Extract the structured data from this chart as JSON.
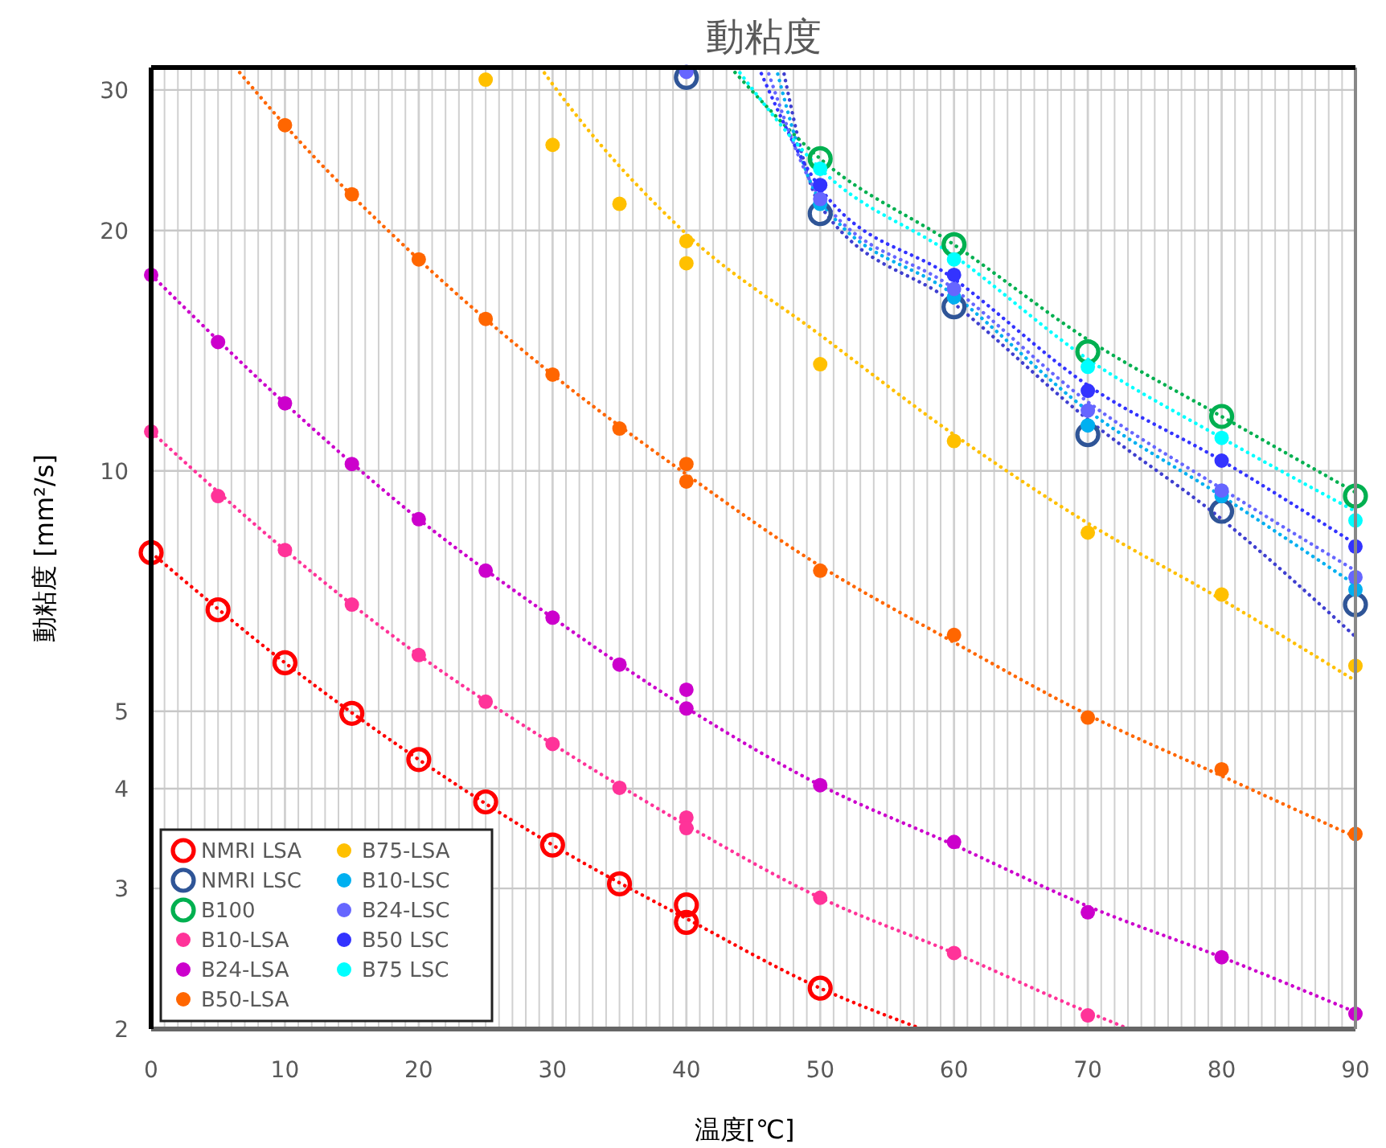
{
  "chart_data": {
    "type": "scatter",
    "title": "動粘度",
    "xlabel": "温度[℃]",
    "ylabel": "動粘度 [mm²/s]",
    "xlim": [
      0,
      90
    ],
    "ylim": [
      2,
      32
    ],
    "xticks": [
      0,
      {
        "value": 1,
        "label": null
      },
      {
        "value": 2,
        "label": null
      },
      {
        "value": 3,
        "label": null
      },
      {
        "value": 4,
        "label": null
      },
      {
        "value": 5,
        "label": null
      },
      {
        "value": 6,
        "label": null
      },
      {
        "value": 7,
        "label": null
      },
      {
        "value": 8,
        "label": null
      },
      {
        "value": 9,
        "label": null
      },
      10,
      {
        "value": 11,
        "label": null
      },
      {
        "value": 12,
        "label": null
      },
      {
        "value": 13,
        "label": null
      },
      {
        "value": 14,
        "label": null
      },
      {
        "value": 15,
        "label": null
      },
      {
        "value": 16,
        "label": null
      },
      {
        "value": 17,
        "label": null
      },
      {
        "value": 18,
        "label": null
      },
      {
        "value": 19,
        "label": null
      },
      20,
      {
        "value": 21,
        "label": null
      },
      {
        "value": 22,
        "label": null
      },
      {
        "value": 23,
        "label": null
      },
      {
        "value": 24,
        "label": null
      },
      {
        "value": 25,
        "label": null
      },
      {
        "value": 26,
        "label": null
      },
      {
        "value": 27,
        "label": null
      },
      {
        "value": 28,
        "label": null
      },
      {
        "value": 29,
        "label": null
      },
      30,
      {
        "value": 31,
        "label": null
      },
      {
        "value": 32,
        "label": null
      },
      {
        "value": 33,
        "label": null
      },
      {
        "value": 34,
        "label": null
      },
      {
        "value": 35,
        "label": null
      },
      {
        "value": 36,
        "label": null
      },
      {
        "value": 37,
        "label": null
      },
      {
        "value": 38,
        "label": null
      },
      {
        "value": 39,
        "label": null
      },
      40,
      {
        "value": 41,
        "label": null
      },
      {
        "value": 42,
        "label": null
      },
      {
        "value": 43,
        "label": null
      },
      {
        "value": 44,
        "label": null
      },
      {
        "value": 45,
        "label": null
      },
      {
        "value": 46,
        "label": null
      },
      {
        "value": 47,
        "label": null
      },
      {
        "value": 48,
        "label": null
      },
      {
        "value": 49,
        "label": null
      },
      50,
      {
        "value": 51,
        "label": null
      },
      {
        "value": 52,
        "label": null
      },
      {
        "value": 53,
        "label": null
      },
      {
        "value": 54,
        "label": null
      },
      {
        "value": 55,
        "label": null
      },
      {
        "value": 56,
        "label": null
      },
      {
        "value": 57,
        "label": null
      },
      {
        "value": 58,
        "label": null
      },
      {
        "value": 59,
        "label": null
      },
      60,
      {
        "value": 61,
        "label": null
      },
      {
        "value": 62,
        "label": null
      },
      {
        "value": 63,
        "label": null
      },
      {
        "value": 64,
        "label": null
      },
      {
        "value": 65,
        "label": null
      },
      {
        "value": 66,
        "label": null
      },
      {
        "value": 67,
        "label": null
      },
      {
        "value": 68,
        "label": null
      },
      {
        "value": 69,
        "label": null
      },
      70,
      {
        "value": 71,
        "label": null
      },
      {
        "value": 72,
        "label": null
      },
      {
        "value": 73,
        "label": null
      },
      {
        "value": 74,
        "label": null
      },
      {
        "value": 75,
        "label": null
      },
      {
        "value": 76,
        "label": null
      },
      {
        "value": 77,
        "label": null
      },
      {
        "value": 78,
        "label": null
      },
      {
        "value": 79,
        "label": null
      },
      80,
      {
        "value": 81,
        "label": null
      },
      {
        "value": 82,
        "label": null
      },
      {
        "value": 83,
        "label": null
      },
      {
        "value": 84,
        "label": null
      },
      {
        "value": 85,
        "label": null
      },
      {
        "value": 86,
        "label": null
      },
      {
        "value": 87,
        "label": null
      },
      {
        "value": 88,
        "label": null
      },
      {
        "value": 89,
        "label": null
      },
      90
    ],
    "yticks": [
      2,
      3,
      4,
      5,
      10,
      20,
      30
    ],
    "grid": true,
    "legend": "bottom left",
    "log": "y",
    "series": [
      {
        "name": "NMRI LSA",
        "color": "#ff0000",
        "marker": "circle-open",
        "x": [
          0,
          5,
          10,
          15,
          20,
          25,
          30,
          35,
          40,
          40,
          50
        ],
        "values": [
          7.9,
          6.7,
          5.75,
          4.97,
          4.35,
          3.85,
          3.4,
          3.04,
          2.86,
          2.72,
          2.25
        ]
      },
      {
        "name": "NMRI LSC",
        "color": "#2f5597",
        "marker": "circle-open",
        "x": [
          40,
          50,
          60,
          70,
          80,
          90
        ],
        "values": [
          31.1,
          21.0,
          16.05,
          11.1,
          8.9,
          6.8
        ]
      },
      {
        "name": "B100",
        "color": "#00b050",
        "marker": "circle-open",
        "x": [
          50,
          60,
          70,
          80,
          90
        ],
        "values": [
          24.6,
          19.2,
          14.1,
          11.7,
          9.3
        ]
      },
      {
        "name": "B10-LSA",
        "color": "#ff3399",
        "marker": "circle",
        "x": [
          0,
          5,
          10,
          15,
          20,
          25,
          30,
          35,
          40,
          40,
          50,
          60,
          70
        ],
        "values": [
          11.2,
          9.3,
          7.96,
          6.8,
          5.88,
          5.14,
          4.55,
          4.01,
          3.68,
          3.57,
          2.92,
          2.49,
          2.08
        ]
      },
      {
        "name": "B24-LSA",
        "color": "#cc00cc",
        "marker": "circle",
        "x": [
          0,
          5,
          10,
          15,
          20,
          25,
          30,
          35,
          40,
          40,
          50,
          60,
          70,
          80,
          90
        ],
        "values": [
          17.6,
          14.5,
          12.15,
          10.2,
          8.7,
          7.5,
          6.55,
          5.72,
          5.32,
          5.04,
          4.04,
          3.43,
          2.8,
          2.46,
          2.09
        ]
      },
      {
        "name": "B50-LSA",
        "color": "#ff6600",
        "marker": "circle",
        "x": [
          10,
          15,
          20,
          25,
          30,
          35,
          40,
          40,
          50,
          60,
          70,
          80,
          90
        ],
        "values": [
          27.1,
          22.2,
          18.4,
          15.5,
          13.2,
          11.3,
          10.2,
          9.7,
          7.5,
          6.23,
          4.91,
          4.23,
          3.51
        ]
      },
      {
        "name": "B75-LSA",
        "color": "#ffc000",
        "marker": "circle",
        "x": [
          25,
          30,
          35,
          40,
          40,
          50,
          60,
          70,
          80,
          90
        ],
        "values": [
          30.9,
          25.6,
          21.6,
          19.4,
          18.2,
          13.6,
          10.9,
          8.37,
          7.0,
          5.7
        ]
      },
      {
        "name": "B10-LSC",
        "color": "#00b0f0",
        "marker": "circle",
        "x": [
          50,
          60,
          70,
          80,
          90
        ],
        "values": [
          21.6,
          16.5,
          11.4,
          9.3,
          7.1
        ]
      },
      {
        "name": "B24-LSC",
        "color": "#6666ff",
        "marker": "circle",
        "x": [
          40,
          50,
          60,
          70,
          80,
          90
        ],
        "values": [
          31.6,
          21.9,
          16.9,
          11.9,
          9.45,
          7.36
        ]
      },
      {
        "name": "B50 LSC",
        "color": "#3333ff",
        "marker": "circle",
        "x": [
          50,
          60,
          70,
          80,
          90
        ],
        "values": [
          22.8,
          17.6,
          12.6,
          10.3,
          8.04
        ]
      },
      {
        "name": "B75 LSC",
        "color": "#00ffff",
        "marker": "circle",
        "x": [
          50,
          60,
          70,
          80,
          90
        ],
        "values": [
          23.9,
          18.4,
          13.5,
          11.0,
          8.67
        ]
      },
      {
        "type": "line",
        "color": "#ff0000",
        "line_style": "dotted",
        "x": [
          0,
          10,
          20,
          30,
          40,
          50,
          57.6
        ],
        "values": [
          7.9,
          5.75,
          4.35,
          3.4,
          2.75,
          2.25,
          2
        ]
      },
      {
        "type": "line",
        "color": "#3f3fd0",
        "line_style": "dotted",
        "x": [
          47.2,
          50,
          60,
          70,
          80,
          90
        ],
        "values": [
          32,
          21.5,
          16.2,
          11.6,
          8.7,
          6.2
        ]
      },
      {
        "type": "line",
        "color": "#00b050",
        "line_style": "dotted",
        "x": [
          43.3,
          50,
          60,
          70,
          80,
          90
        ],
        "values": [
          32,
          24.6,
          19.2,
          14.6,
          11.7,
          9.4
        ]
      },
      {
        "type": "line",
        "color": "#ff3399",
        "line_style": "dotted",
        "x": [
          0,
          10,
          20,
          30,
          40,
          50,
          60,
          70,
          73.1
        ],
        "values": [
          11.2,
          7.96,
          5.88,
          4.55,
          3.6,
          2.92,
          2.49,
          2.1,
          2
        ]
      },
      {
        "type": "line",
        "color": "#cc00cc",
        "line_style": "dotted",
        "x": [
          0,
          10,
          20,
          30,
          40,
          50,
          60,
          70,
          80,
          90
        ],
        "values": [
          17.6,
          12.15,
          8.7,
          6.55,
          5.05,
          4.04,
          3.4,
          2.85,
          2.46,
          2.1
        ]
      },
      {
        "type": "line",
        "color": "#ff6600",
        "line_style": "dotted",
        "x": [
          6.3,
          10,
          20,
          30,
          40,
          50,
          60,
          70,
          80,
          90
        ],
        "values": [
          32,
          27.1,
          18.4,
          13.2,
          9.9,
          7.6,
          6.1,
          4.95,
          4.15,
          3.48
        ]
      },
      {
        "type": "line",
        "color": "#ffc000",
        "line_style": "dotted",
        "x": [
          29.1,
          30,
          40,
          50,
          60,
          70,
          80,
          90
        ],
        "values": [
          32,
          30.5,
          19.8,
          14.8,
          11.1,
          8.6,
          6.9,
          5.46
        ]
      },
      {
        "type": "line",
        "color": "#00b0f0",
        "line_style": "dotted",
        "x": [
          46.7,
          50,
          60,
          70,
          80,
          90
        ],
        "values": [
          32,
          21.8,
          16.6,
          11.9,
          9.3,
          7.2
        ]
      },
      {
        "type": "line",
        "color": "#6666ff",
        "line_style": "dotted",
        "x": [
          46,
          50,
          60,
          70,
          80,
          90
        ],
        "values": [
          32,
          22,
          16.9,
          12.2,
          9.5,
          7.5
        ]
      },
      {
        "type": "line",
        "color": "#3333ff",
        "line_style": "dotted",
        "x": [
          45.4,
          50,
          60,
          70,
          80,
          90
        ],
        "values": [
          32,
          22.6,
          17.4,
          12.8,
          10.3,
          8.1
        ]
      },
      {
        "type": "line",
        "color": "#00ffff",
        "line_style": "dotted",
        "x": [
          43.7,
          50,
          60,
          70,
          80,
          90
        ],
        "values": [
          32,
          23.9,
          18.6,
          13.8,
          11,
          8.9
        ]
      }
    ]
  }
}
